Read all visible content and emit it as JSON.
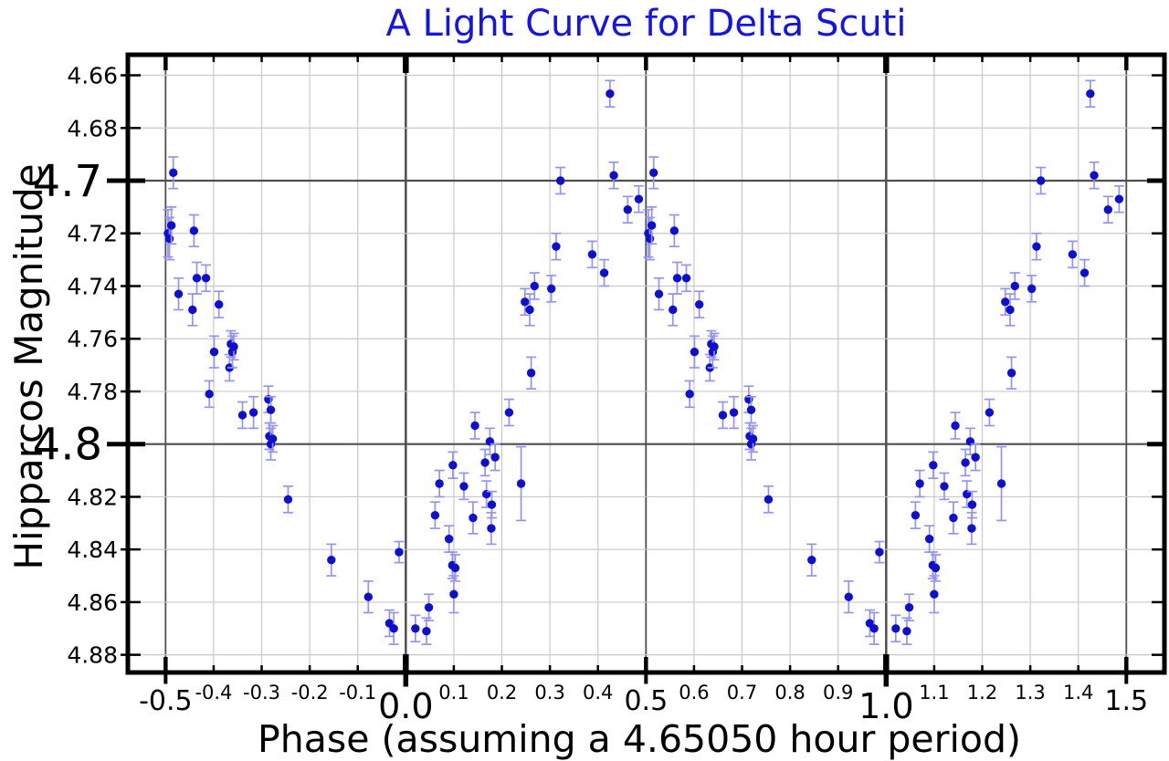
{
  "chart_data": {
    "type": "scatter",
    "title": "A Light Curve for Delta Scuti",
    "xlabel": "Phase (assuming a 4.65050 hour period)",
    "ylabel": "Hipparcos Magnitude",
    "period_hours": 4.6505,
    "legend": null,
    "grid": true,
    "colors": {
      "title": "#1414e6",
      "marker": "#0f0fd2",
      "errorbar": "#9494ef",
      "axis": "#000000",
      "grid_minor": "#c9c9c9",
      "grid_major": "#4f4f4f",
      "tick_label": "#000000"
    },
    "x_axis": {
      "label": "Phase (assuming a 4.65050 hour period)",
      "range_data": [
        -0.5,
        1.5
      ],
      "range_displayed": [
        -0.5786,
        1.5793
      ],
      "ticks": [
        {
          "value": -0.5,
          "label": "-0.5",
          "size": "m"
        },
        {
          "value": -0.4,
          "label": "-0.4",
          "size": "s"
        },
        {
          "value": -0.3,
          "label": "-0.3",
          "size": "s"
        },
        {
          "value": -0.2,
          "label": "-0.2",
          "size": "s"
        },
        {
          "value": -0.1,
          "label": "-0.1",
          "size": "s"
        },
        {
          "value": 0.0,
          "label": "0.0",
          "size": "l"
        },
        {
          "value": 0.1,
          "label": "0.1",
          "size": "s"
        },
        {
          "value": 0.2,
          "label": "0.2",
          "size": "s"
        },
        {
          "value": 0.3,
          "label": "0.3",
          "size": "s"
        },
        {
          "value": 0.4,
          "label": "0.4",
          "size": "s"
        },
        {
          "value": 0.5,
          "label": "0.5",
          "size": "m"
        },
        {
          "value": 0.6,
          "label": "0.6",
          "size": "s"
        },
        {
          "value": 0.7,
          "label": "0.7",
          "size": "s"
        },
        {
          "value": 0.8,
          "label": "0.8",
          "size": "s"
        },
        {
          "value": 0.9,
          "label": "0.9",
          "size": "s"
        },
        {
          "value": 1.0,
          "label": "1.0",
          "size": "l"
        },
        {
          "value": 1.1,
          "label": "1.1",
          "size": "s"
        },
        {
          "value": 1.2,
          "label": "1.2",
          "size": "s"
        },
        {
          "value": 1.3,
          "label": "1.3",
          "size": "s"
        },
        {
          "value": 1.4,
          "label": "1.4",
          "size": "s"
        },
        {
          "value": 1.5,
          "label": "1.5",
          "size": "m"
        }
      ]
    },
    "y_axis": {
      "label": "Hipparcos Magnitude",
      "inverted": true,
      "range_data": [
        4.66,
        4.88
      ],
      "range_displayed": [
        4.6522,
        4.8867
      ],
      "ticks": [
        {
          "value": 4.66,
          "label": "4.66",
          "size": "s"
        },
        {
          "value": 4.68,
          "label": "4.68",
          "size": "s"
        },
        {
          "value": 4.7,
          "label": "4.7",
          "size": "l"
        },
        {
          "value": 4.72,
          "label": "4.72",
          "size": "s"
        },
        {
          "value": 4.74,
          "label": "4.74",
          "size": "s"
        },
        {
          "value": 4.76,
          "label": "4.76",
          "size": "s"
        },
        {
          "value": 4.78,
          "label": "4.78",
          "size": "s"
        },
        {
          "value": 4.8,
          "label": "4.8",
          "size": "l"
        },
        {
          "value": 4.82,
          "label": "4.82",
          "size": "s"
        },
        {
          "value": 4.84,
          "label": "4.84",
          "size": "s"
        },
        {
          "value": 4.86,
          "label": "4.86",
          "size": "s"
        },
        {
          "value": 4.88,
          "label": "4.88",
          "size": "s"
        }
      ]
    },
    "fold_duplication": "each measurement is re-plotted at phase-1 and phase+1 when within [-0.5, 1.5]",
    "points": [
      {
        "phase": 0.02,
        "mag": 4.87,
        "err": 0.005
      },
      {
        "phase": 0.043,
        "mag": 4.871,
        "err": 0.005
      },
      {
        "phase": 0.048,
        "mag": 4.862,
        "err": 0.005
      },
      {
        "phase": 0.061,
        "mag": 4.827,
        "err": 0.005
      },
      {
        "phase": 0.07,
        "mag": 4.815,
        "err": 0.005
      },
      {
        "phase": 0.09,
        "mag": 4.836,
        "err": 0.005
      },
      {
        "phase": 0.097,
        "mag": 4.846,
        "err": 0.005
      },
      {
        "phase": 0.098,
        "mag": 4.808,
        "err": 0.005
      },
      {
        "phase": 0.1,
        "mag": 4.857,
        "err": 0.007
      },
      {
        "phase": 0.103,
        "mag": 4.847,
        "err": 0.005
      },
      {
        "phase": 0.121,
        "mag": 4.816,
        "err": 0.005
      },
      {
        "phase": 0.14,
        "mag": 4.828,
        "err": 0.006
      },
      {
        "phase": 0.144,
        "mag": 4.793,
        "err": 0.005
      },
      {
        "phase": 0.165,
        "mag": 4.807,
        "err": 0.005
      },
      {
        "phase": 0.168,
        "mag": 4.819,
        "err": 0.005
      },
      {
        "phase": 0.175,
        "mag": 4.799,
        "err": 0.005
      },
      {
        "phase": 0.178,
        "mag": 4.832,
        "err": 0.006
      },
      {
        "phase": 0.179,
        "mag": 4.823,
        "err": 0.005
      },
      {
        "phase": 0.186,
        "mag": 4.805,
        "err": 0.005
      },
      {
        "phase": 0.215,
        "mag": 4.788,
        "err": 0.005
      },
      {
        "phase": 0.24,
        "mag": 4.815,
        "err": 0.014
      },
      {
        "phase": 0.248,
        "mag": 4.746,
        "err": 0.005
      },
      {
        "phase": 0.258,
        "mag": 4.749,
        "err": 0.006
      },
      {
        "phase": 0.261,
        "mag": 4.773,
        "err": 0.006
      },
      {
        "phase": 0.268,
        "mag": 4.74,
        "err": 0.005
      },
      {
        "phase": 0.303,
        "mag": 4.741,
        "err": 0.005
      },
      {
        "phase": 0.313,
        "mag": 4.725,
        "err": 0.005
      },
      {
        "phase": 0.322,
        "mag": 4.7,
        "err": 0.005
      },
      {
        "phase": 0.388,
        "mag": 4.728,
        "err": 0.005
      },
      {
        "phase": 0.413,
        "mag": 4.735,
        "err": 0.005
      },
      {
        "phase": 0.425,
        "mag": 4.667,
        "err": 0.005
      },
      {
        "phase": 0.433,
        "mag": 4.698,
        "err": 0.005
      },
      {
        "phase": 0.462,
        "mag": 4.711,
        "err": 0.005
      },
      {
        "phase": 0.485,
        "mag": 4.707,
        "err": 0.005
      },
      {
        "phase": 0.505,
        "mag": 4.72,
        "err": 0.009
      },
      {
        "phase": 0.508,
        "mag": 4.722,
        "err": 0.008
      },
      {
        "phase": 0.512,
        "mag": 4.717,
        "err": 0.007
      },
      {
        "phase": 0.516,
        "mag": 4.697,
        "err": 0.006
      },
      {
        "phase": 0.527,
        "mag": 4.743,
        "err": 0.006
      },
      {
        "phase": 0.556,
        "mag": 4.749,
        "err": 0.006
      },
      {
        "phase": 0.559,
        "mag": 4.719,
        "err": 0.006
      },
      {
        "phase": 0.565,
        "mag": 4.737,
        "err": 0.006
      },
      {
        "phase": 0.584,
        "mag": 4.737,
        "err": 0.005
      },
      {
        "phase": 0.591,
        "mag": 4.781,
        "err": 0.005
      },
      {
        "phase": 0.601,
        "mag": 4.765,
        "err": 0.006
      },
      {
        "phase": 0.611,
        "mag": 4.747,
        "err": 0.005
      },
      {
        "phase": 0.633,
        "mag": 4.771,
        "err": 0.005
      },
      {
        "phase": 0.636,
        "mag": 4.762,
        "err": 0.005
      },
      {
        "phase": 0.639,
        "mag": 4.765,
        "err": 0.006
      },
      {
        "phase": 0.642,
        "mag": 4.763,
        "err": 0.005
      },
      {
        "phase": 0.66,
        "mag": 4.789,
        "err": 0.005
      },
      {
        "phase": 0.683,
        "mag": 4.788,
        "err": 0.006
      },
      {
        "phase": 0.714,
        "mag": 4.783,
        "err": 0.005
      },
      {
        "phase": 0.716,
        "mag": 4.797,
        "err": 0.005
      },
      {
        "phase": 0.719,
        "mag": 4.787,
        "err": 0.005
      },
      {
        "phase": 0.719,
        "mag": 4.8,
        "err": 0.006
      },
      {
        "phase": 0.723,
        "mag": 4.798,
        "err": 0.005
      },
      {
        "phase": 0.755,
        "mag": 4.821,
        "err": 0.005
      },
      {
        "phase": 0.845,
        "mag": 4.844,
        "err": 0.006
      },
      {
        "phase": 0.922,
        "mag": 4.858,
        "err": 0.006
      },
      {
        "phase": 0.966,
        "mag": 4.868,
        "err": 0.005
      },
      {
        "phase": 0.975,
        "mag": 4.87,
        "err": 0.006
      },
      {
        "phase": 0.986,
        "mag": 4.841,
        "err": 0.004
      }
    ]
  }
}
